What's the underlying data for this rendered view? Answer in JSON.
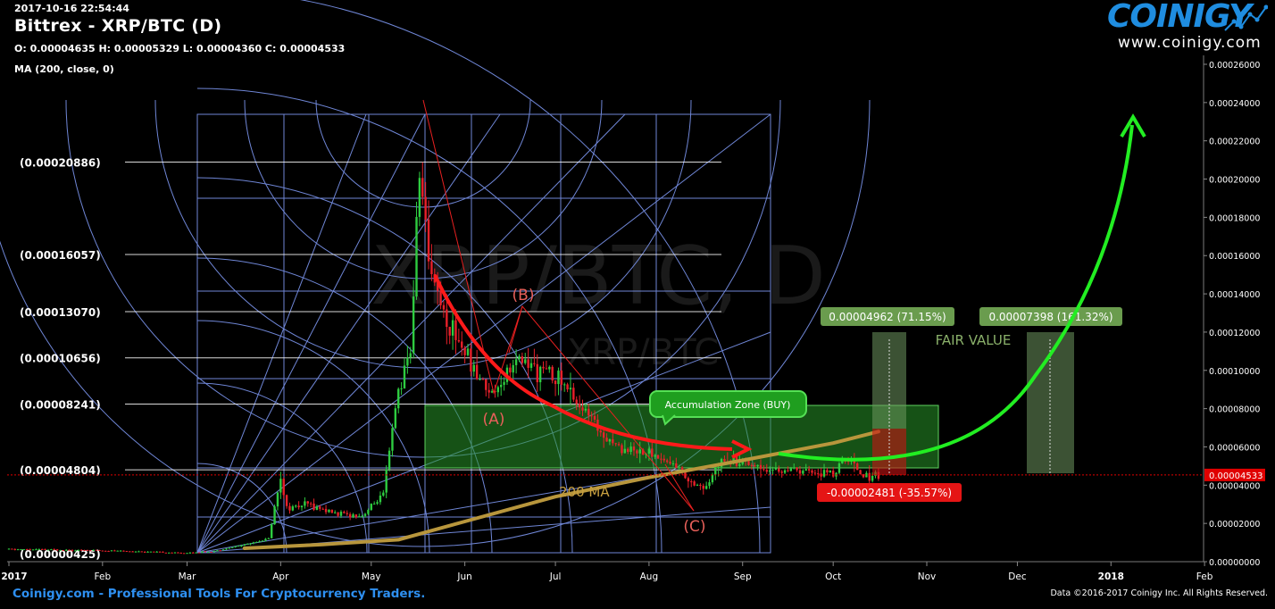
{
  "header": {
    "timestamp": "2017-10-16 22:54:44",
    "title": "Bittrex - XRP/BTC (D)",
    "ohlc": "O: 0.00004635 H: 0.00005329 L: 0.00004360 C: 0.00004533",
    "indicator": "MA (200, close, 0)"
  },
  "logo": {
    "brand": "COINIGY",
    "site": "www.coinigy.com"
  },
  "watermark": {
    "main": "XRP/BTC, D",
    "sub": "XRP/BTC"
  },
  "footer": {
    "left": "Coinigy.com - Professional Tools For Cryptocurrency Traders.",
    "right": "Data ©2016-2017 Coinigy Inc. All Rights Reserved."
  },
  "colors": {
    "bull": "#2ecc40",
    "bear": "#e8202a",
    "ma": "#b8963c",
    "fib": "#ffffff",
    "gann": "#6f86d6",
    "zone": "#1c8a1c",
    "arrow_green": "#22ee22",
    "current_price": "#e00000"
  },
  "chart_data": {
    "type": "candlestick",
    "title": "Bittrex - XRP/BTC (D)",
    "ylim": [
      0,
      0.00026
    ],
    "yticks": [
      "0.00000000",
      "0.00002000",
      "0.00004000",
      "0.00006000",
      "0.00008000",
      "0.00010000",
      "0.00012000",
      "0.00014000",
      "0.00016000",
      "0.00018000",
      "0.00020000",
      "0.00022000",
      "0.00024000",
      "0.00026000"
    ],
    "xticks": [
      {
        "label": "2017",
        "day": 0
      },
      {
        "label": "Feb",
        "day": 31
      },
      {
        "label": "Mar",
        "day": 59
      },
      {
        "label": "Apr",
        "day": 90
      },
      {
        "label": "May",
        "day": 120
      },
      {
        "label": "Jun",
        "day": 151
      },
      {
        "label": "Jul",
        "day": 181
      },
      {
        "label": "Aug",
        "day": 212
      },
      {
        "label": "Sep",
        "day": 243
      },
      {
        "label": "Oct",
        "day": 273
      },
      {
        "label": "Nov",
        "day": 304
      },
      {
        "label": "Dec",
        "day": 334
      },
      {
        "label": "2018",
        "day": 365
      },
      {
        "label": "Feb",
        "day": 396
      }
    ],
    "price_path": [
      {
        "date": "2017-01-01",
        "price": 6.5e-06
      },
      {
        "date": "2017-01-20",
        "price": 6.2e-06
      },
      {
        "date": "2017-02-10",
        "price": 5.5e-06
      },
      {
        "date": "2017-02-28",
        "price": 4.5e-06
      },
      {
        "date": "2017-03-10",
        "price": 5.5e-06
      },
      {
        "date": "2017-03-20",
        "price": 9e-06
      },
      {
        "date": "2017-03-28",
        "price": 1.2e-05
      },
      {
        "date": "2017-04-01",
        "price": 4.5e-05
      },
      {
        "date": "2017-04-03",
        "price": 2.8e-05
      },
      {
        "date": "2017-04-10",
        "price": 3e-05
      },
      {
        "date": "2017-04-20",
        "price": 2.5e-05
      },
      {
        "date": "2017-04-28",
        "price": 2.4e-05
      },
      {
        "date": "2017-05-05",
        "price": 3.5e-05
      },
      {
        "date": "2017-05-10",
        "price": 9e-05
      },
      {
        "date": "2017-05-14",
        "price": 0.00011
      },
      {
        "date": "2017-05-17",
        "price": 0.000205
      },
      {
        "date": "2017-05-20",
        "price": 0.00016
      },
      {
        "date": "2017-05-25",
        "price": 0.00013
      },
      {
        "date": "2017-06-01",
        "price": 0.00011
      },
      {
        "date": "2017-06-05",
        "price": 9.8e-05
      },
      {
        "date": "2017-06-10",
        "price": 8.8e-05
      },
      {
        "date": "2017-06-15",
        "price": 0.0001
      },
      {
        "date": "2017-06-20",
        "price": 0.000105
      },
      {
        "date": "2017-06-25",
        "price": 0.0001
      },
      {
        "date": "2017-07-01",
        "price": 9.8e-05
      },
      {
        "date": "2017-07-10",
        "price": 8e-05
      },
      {
        "date": "2017-07-15",
        "price": 7e-05
      },
      {
        "date": "2017-07-22",
        "price": 6e-05
      },
      {
        "date": "2017-08-01",
        "price": 5.7e-05
      },
      {
        "date": "2017-08-10",
        "price": 5e-05
      },
      {
        "date": "2017-08-15",
        "price": 4.2e-05
      },
      {
        "date": "2017-08-20",
        "price": 3.8e-05
      },
      {
        "date": "2017-08-25",
        "price": 5.5e-05
      },
      {
        "date": "2017-09-01",
        "price": 5.3e-05
      },
      {
        "date": "2017-09-10",
        "price": 4.8e-05
      },
      {
        "date": "2017-09-20",
        "price": 4.7e-05
      },
      {
        "date": "2017-10-01",
        "price": 4.6e-05
      },
      {
        "date": "2017-10-06",
        "price": 5.4e-05
      },
      {
        "date": "2017-10-11",
        "price": 4.5e-05
      },
      {
        "date": "2017-10-16",
        "price": 4.533e-05
      }
    ],
    "ma200": [
      {
        "date": "2017-03-20",
        "price": 7e-06
      },
      {
        "date": "2017-04-15",
        "price": 9e-06
      },
      {
        "date": "2017-05-10",
        "price": 1.15e-05
      },
      {
        "date": "2017-06-01",
        "price": 2.1e-05
      },
      {
        "date": "2017-07-01",
        "price": 3.4e-05
      },
      {
        "date": "2017-08-01",
        "price": 4.4e-05
      },
      {
        "date": "2017-09-01",
        "price": 5.3e-05
      },
      {
        "date": "2017-10-01",
        "price": 6.2e-05
      },
      {
        "date": "2017-10-16",
        "price": 6.8e-05
      }
    ],
    "current_price": {
      "value": 4.533e-05,
      "label": "0.00004533"
    },
    "fib_levels": [
      {
        "label": "(0.00020886)",
        "value": 0.00020886
      },
      {
        "label": "(0.00016057)",
        "value": 0.00016057
      },
      {
        "label": "(0.00013070)",
        "value": 0.0001307
      },
      {
        "label": "(0.00010656)",
        "value": 0.00010656
      },
      {
        "label": "(0.00008241)",
        "value": 8.241e-05
      },
      {
        "label": "(0.00004804)",
        "value": 4.804e-05
      },
      {
        "label": "(0.00000425)",
        "value": 4.25e-06
      }
    ],
    "annotations": {
      "wave_a": "(A)",
      "wave_b": "(B)",
      "wave_c": "(C)",
      "zone_label": "Accumulation Zone (BUY)",
      "ma_label": "200 MA",
      "fair_value": "FAIR VALUE",
      "target1": "0.00004962 (71.15%)",
      "target2": "0.00007398 (161.32%)",
      "drawdown": "-0.00002481 (-35.57%)"
    }
  }
}
